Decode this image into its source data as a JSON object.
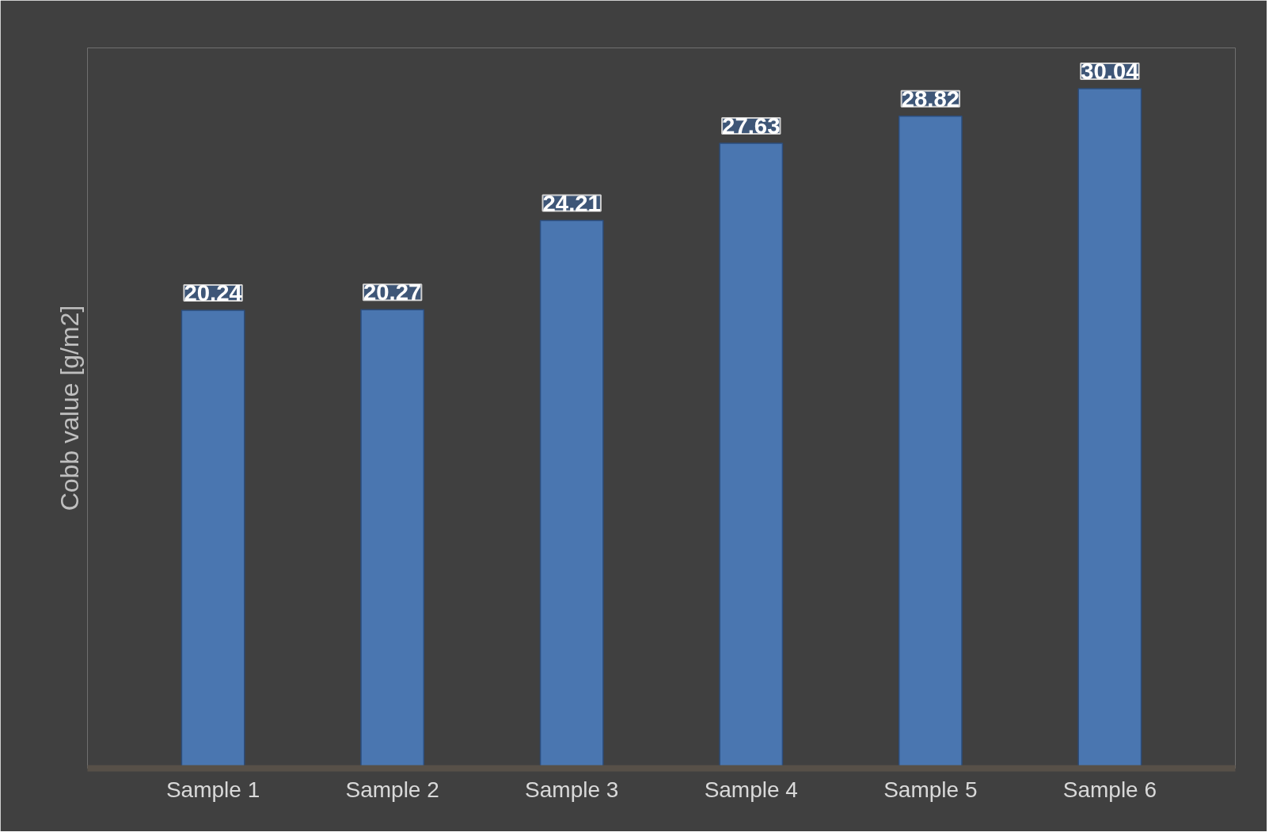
{
  "chart_data": {
    "type": "bar",
    "ylabel": "Cobb value [g/m2]",
    "categories": [
      "Sample 1",
      "Sample 2",
      "Sample 3",
      "Sample 4",
      "Sample 5",
      "Sample 6"
    ],
    "values": [
      20.24,
      20.27,
      24.21,
      27.63,
      28.82,
      30.04
    ],
    "color": "#4a76b0",
    "data_labels": true
  }
}
